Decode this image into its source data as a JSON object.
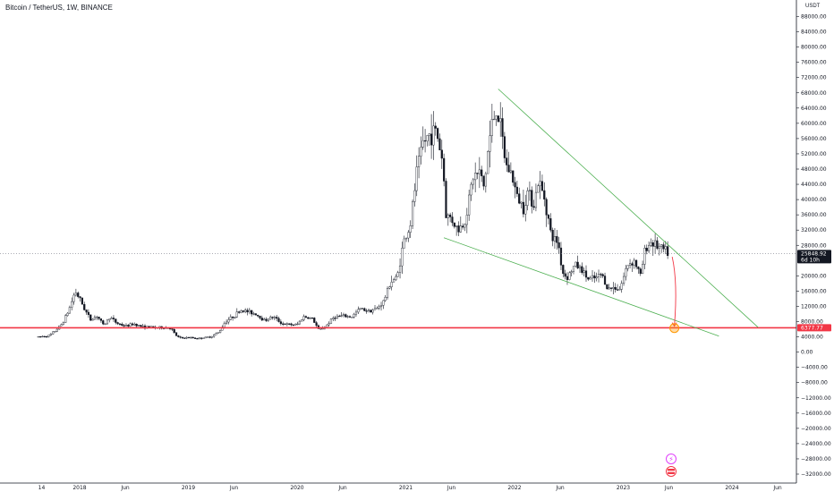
{
  "chart_data": {
    "type": "candlestick",
    "title": "Bitcoin / TetherUS, 1W, BINANCE",
    "symbol": "BTCUSDT",
    "exchange": "BINANCE",
    "interval": "1W",
    "y_unit": "USDT",
    "ylim": [
      -32000,
      90000
    ],
    "y_ticks": [
      {
        "v": 88000,
        "label": "88000.00"
      },
      {
        "v": 84000,
        "label": "84000.00"
      },
      {
        "v": 80000,
        "label": "80000.00"
      },
      {
        "v": 76000,
        "label": "76000.00"
      },
      {
        "v": 72000,
        "label": "72000.00"
      },
      {
        "v": 68000,
        "label": "68000.00"
      },
      {
        "v": 64000,
        "label": "64000.00"
      },
      {
        "v": 60000,
        "label": "60000.00"
      },
      {
        "v": 56000,
        "label": "56000.00"
      },
      {
        "v": 52000,
        "label": "52000.00"
      },
      {
        "v": 48000,
        "label": "48000.00"
      },
      {
        "v": 44000,
        "label": "44000.00"
      },
      {
        "v": 40000,
        "label": "40000.00"
      },
      {
        "v": 36000,
        "label": "36000.00"
      },
      {
        "v": 32000,
        "label": "32000.00"
      },
      {
        "v": 28000,
        "label": "28000.00"
      },
      {
        "v": 20000,
        "label": "20000.00"
      },
      {
        "v": 16000,
        "label": "16000.00"
      },
      {
        "v": 12000,
        "label": "12000.00"
      },
      {
        "v": 8000,
        "label": "8000.00"
      },
      {
        "v": 4000,
        "label": "4000.00"
      },
      {
        "v": 0,
        "label": "0.00"
      },
      {
        "v": -4000,
        "label": "−4000.00"
      },
      {
        "v": -8000,
        "label": "−8000.00"
      },
      {
        "v": -12000,
        "label": "−12000.00"
      },
      {
        "v": -16000,
        "label": "−16000.00"
      },
      {
        "v": -20000,
        "label": "−20000.00"
      },
      {
        "v": -24000,
        "label": "−24000.00"
      },
      {
        "v": -28000,
        "label": "−28000.00"
      },
      {
        "v": -32000,
        "label": "−32000.00"
      }
    ],
    "x_ticks": [
      {
        "t": 2017.65,
        "label": "14"
      },
      {
        "t": 2018.0,
        "label": "2018"
      },
      {
        "t": 2018.42,
        "label": "Jun"
      },
      {
        "t": 2019.0,
        "label": "2019"
      },
      {
        "t": 2019.42,
        "label": "Jun"
      },
      {
        "t": 2020.0,
        "label": "2020"
      },
      {
        "t": 2020.42,
        "label": "Jun"
      },
      {
        "t": 2021.0,
        "label": "2021"
      },
      {
        "t": 2021.42,
        "label": "Jun"
      },
      {
        "t": 2022.0,
        "label": "2022"
      },
      {
        "t": 2022.42,
        "label": "Jun"
      },
      {
        "t": 2023.0,
        "label": "2023"
      },
      {
        "t": 2023.42,
        "label": "Jun"
      },
      {
        "t": 2024.0,
        "label": "2024"
      },
      {
        "t": 2024.42,
        "label": "Jun"
      }
    ],
    "price_path": [
      [
        2017.62,
        4000
      ],
      [
        2017.72,
        4300
      ],
      [
        2017.78,
        5700
      ],
      [
        2017.84,
        7500
      ],
      [
        2017.9,
        11000
      ],
      [
        2017.96,
        16000
      ],
      [
        2018.0,
        14000
      ],
      [
        2018.05,
        11000
      ],
      [
        2018.1,
        8500
      ],
      [
        2018.16,
        9500
      ],
      [
        2018.22,
        7000
      ],
      [
        2018.28,
        9200
      ],
      [
        2018.34,
        7600
      ],
      [
        2018.42,
        6800
      ],
      [
        2018.5,
        7400
      ],
      [
        2018.58,
        6600
      ],
      [
        2018.66,
        6500
      ],
      [
        2018.76,
        6400
      ],
      [
        2018.84,
        6300
      ],
      [
        2018.88,
        4500
      ],
      [
        2018.92,
        3700
      ],
      [
        2019.0,
        3800
      ],
      [
        2019.1,
        3600
      ],
      [
        2019.2,
        4000
      ],
      [
        2019.28,
        5200
      ],
      [
        2019.34,
        8000
      ],
      [
        2019.42,
        9500
      ],
      [
        2019.48,
        11000
      ],
      [
        2019.56,
        10500
      ],
      [
        2019.62,
        10000
      ],
      [
        2019.7,
        8300
      ],
      [
        2019.78,
        9300
      ],
      [
        2019.86,
        7500
      ],
      [
        2019.92,
        7200
      ],
      [
        2020.0,
        7200
      ],
      [
        2020.06,
        9300
      ],
      [
        2020.14,
        8800
      ],
      [
        2020.2,
        5800
      ],
      [
        2020.26,
        6700
      ],
      [
        2020.34,
        9200
      ],
      [
        2020.42,
        9500
      ],
      [
        2020.5,
        9200
      ],
      [
        2020.58,
        11400
      ],
      [
        2020.66,
        10800
      ],
      [
        2020.74,
        11500
      ],
      [
        2020.8,
        13500
      ],
      [
        2020.86,
        18500
      ],
      [
        2020.92,
        19500
      ],
      [
        2020.98,
        29000
      ],
      [
        2021.04,
        33000
      ],
      [
        2021.1,
        47000
      ],
      [
        2021.16,
        55000
      ],
      [
        2021.22,
        57000
      ],
      [
        2021.28,
        58000
      ],
      [
        2021.34,
        50000
      ],
      [
        2021.37,
        36000
      ],
      [
        2021.42,
        35000
      ],
      [
        2021.48,
        32000
      ],
      [
        2021.54,
        34000
      ],
      [
        2021.58,
        40000
      ],
      [
        2021.62,
        46000
      ],
      [
        2021.68,
        47000
      ],
      [
        2021.72,
        43000
      ],
      [
        2021.76,
        54000
      ],
      [
        2021.8,
        61000
      ],
      [
        2021.84,
        64000
      ],
      [
        2021.88,
        57000
      ],
      [
        2021.92,
        49000
      ],
      [
        2021.97,
        47000
      ],
      [
        2022.02,
        41000
      ],
      [
        2022.08,
        38000
      ],
      [
        2022.12,
        42000
      ],
      [
        2022.18,
        39000
      ],
      [
        2022.22,
        45000
      ],
      [
        2022.28,
        40000
      ],
      [
        2022.34,
        30000
      ],
      [
        2022.4,
        29000
      ],
      [
        2022.44,
        21000
      ],
      [
        2022.48,
        19500
      ],
      [
        2022.56,
        23000
      ],
      [
        2022.62,
        21500
      ],
      [
        2022.68,
        19000
      ],
      [
        2022.76,
        19500
      ],
      [
        2022.8,
        20500
      ],
      [
        2022.86,
        16500
      ],
      [
        2022.92,
        17000
      ],
      [
        2022.97,
        16600
      ],
      [
        2023.04,
        23000
      ],
      [
        2023.1,
        24000
      ],
      [
        2023.16,
        20000
      ],
      [
        2023.2,
        27000
      ],
      [
        2023.26,
        29000
      ],
      [
        2023.32,
        27500
      ],
      [
        2023.37,
        26800
      ],
      [
        2023.42,
        25849
      ]
    ],
    "last_price": {
      "value": 25848.92,
      "label": "25848.92",
      "countdown": "6d 10h",
      "color": "#ef5350"
    },
    "horizontal_level": {
      "value": 6377.77,
      "label": "6377.77",
      "color": "#f23645"
    },
    "trendlines": [
      {
        "name": "upper",
        "color": "#4caf50",
        "from": [
          2021.85,
          69000
        ],
        "to": [
          2024.24,
          6500
        ]
      },
      {
        "name": "lower",
        "color": "#4caf50",
        "from": [
          2021.35,
          30000
        ],
        "to": [
          2023.88,
          4200
        ]
      }
    ],
    "projection_arrow": {
      "from": [
        2023.45,
        25000
      ],
      "to": [
        2023.47,
        6800
      ],
      "color": "#f23645"
    },
    "target_marker": {
      "at": [
        2023.47,
        6300
      ],
      "color": "#ff9800"
    },
    "grid": false,
    "colors": {
      "up": "#ffffff",
      "down": "#131722",
      "wick": "#131722",
      "text": "#131722",
      "axis_line": "#131722"
    }
  }
}
